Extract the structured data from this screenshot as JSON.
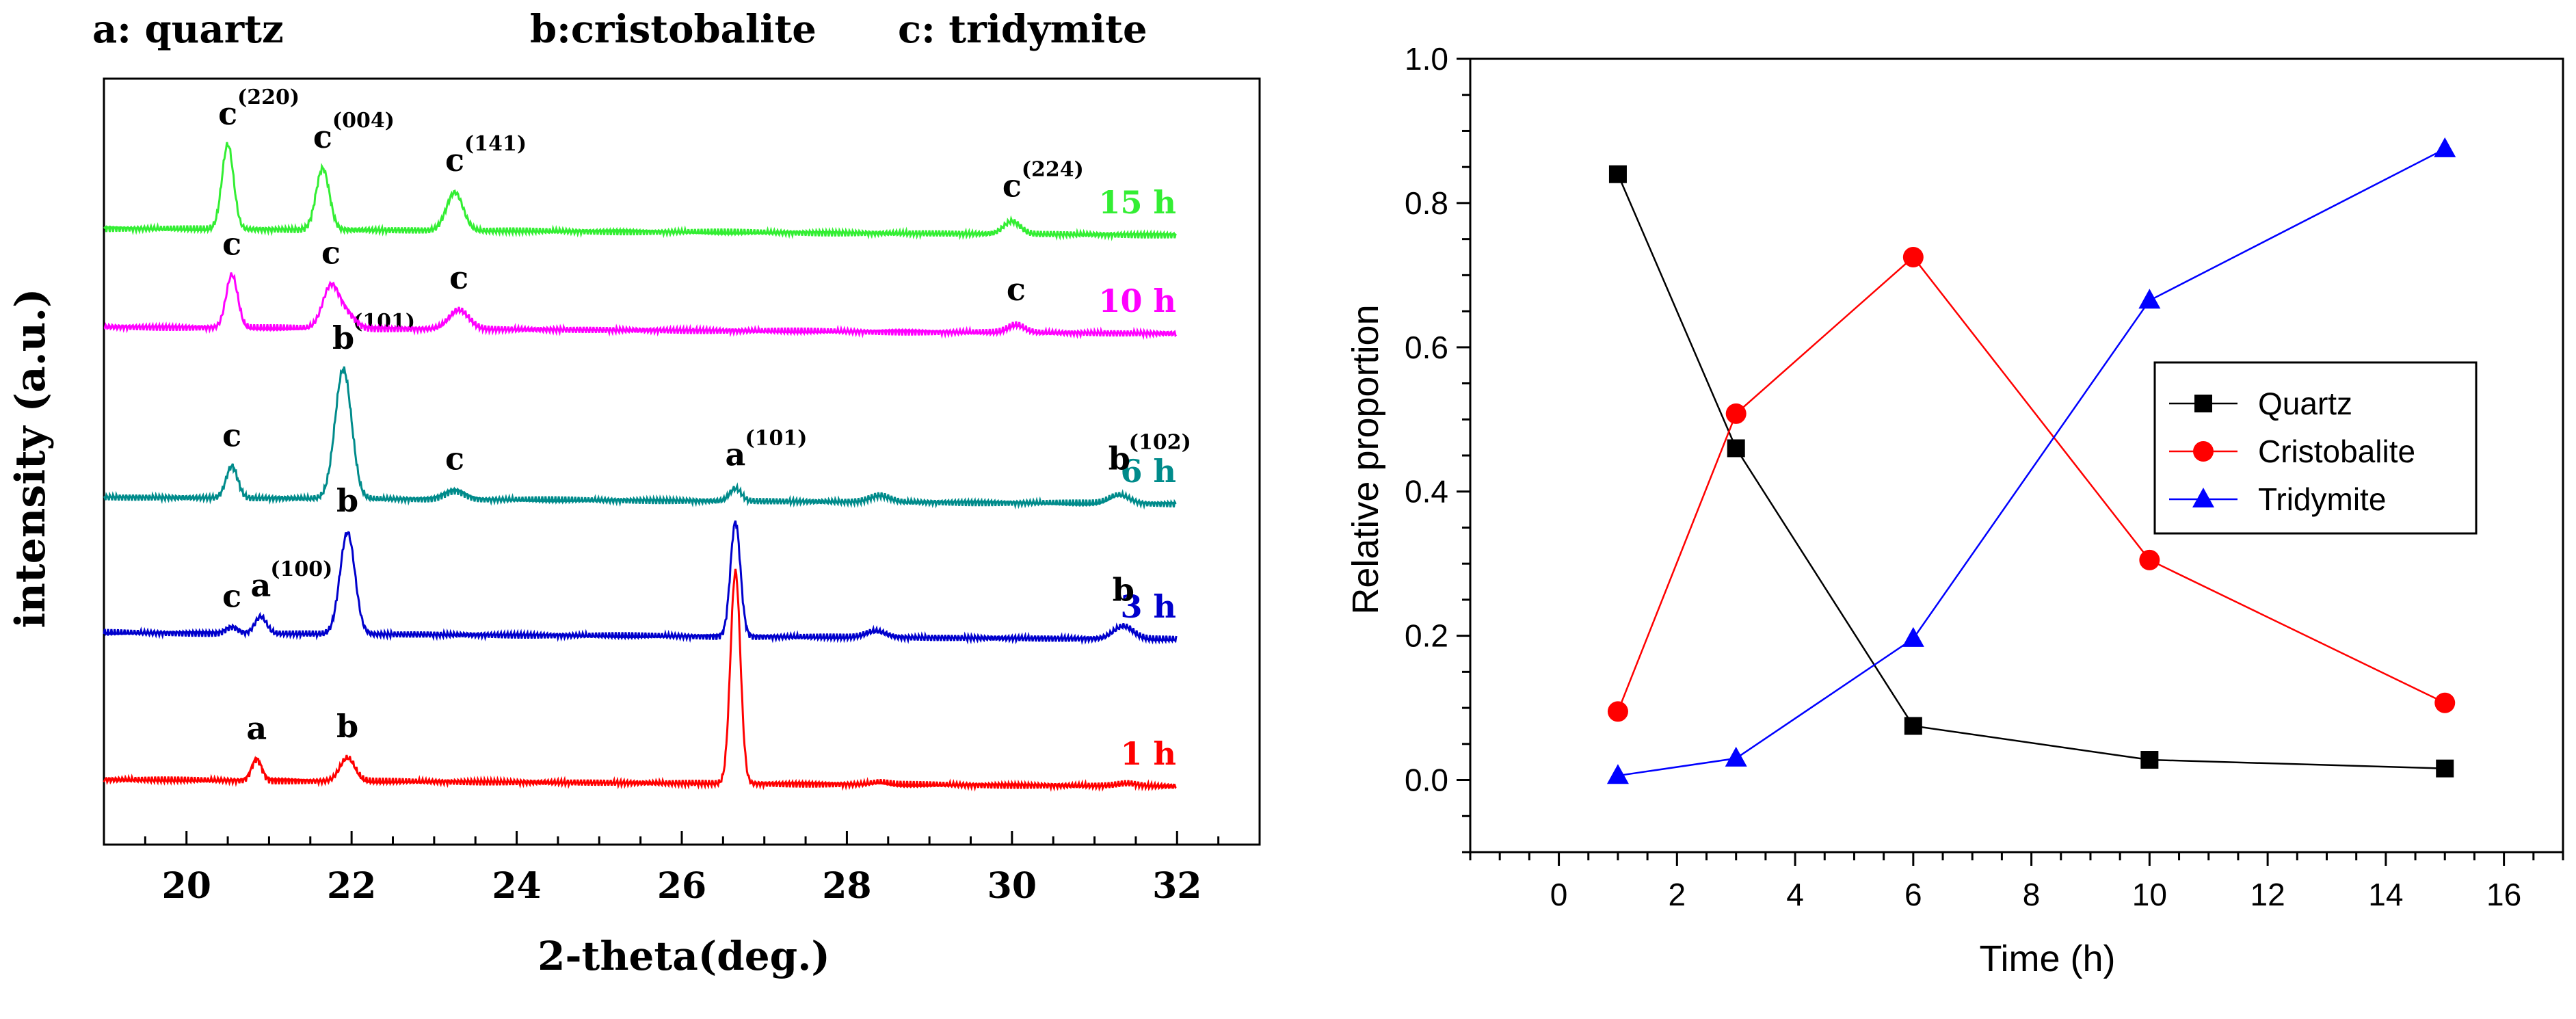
{
  "xrd_panel": {
    "phase_legend": [
      "a: quartz",
      "b:cristobalite",
      "c: tridymite"
    ],
    "xlabel": "2-theta(deg.)",
    "ylabel": "intensity (a.u.)",
    "xlim": [
      19,
      33
    ],
    "x_ticks": [
      20,
      22,
      24,
      26,
      28,
      30,
      32
    ],
    "x_tick_labels": [
      "20",
      "22",
      "24",
      "26",
      "28",
      "30",
      "32"
    ],
    "series": [
      {
        "name": "1 h",
        "label": "1 h",
        "color": "#ff0000",
        "peaks": [
          {
            "position": 20.85,
            "height": 0.5,
            "width": 0.06
          },
          {
            "position": 21.95,
            "height": 0.55,
            "width": 0.09
          },
          {
            "position": 26.65,
            "height": 5.0,
            "width": 0.06
          },
          {
            "position": 28.4,
            "height": 0.05,
            "width": 0.1
          },
          {
            "position": 31.4,
            "height": 0.06,
            "width": 0.12
          }
        ],
        "annotations": [
          {
            "letter": "a",
            "index": "",
            "position": 20.85
          },
          {
            "letter": "b",
            "index": "",
            "position": 21.95
          }
        ]
      },
      {
        "name": "3 h",
        "label": "3 h",
        "color": "#0000cc",
        "peaks": [
          {
            "position": 20.55,
            "height": 0.15,
            "width": 0.07
          },
          {
            "position": 20.9,
            "height": 0.4,
            "width": 0.07
          },
          {
            "position": 21.95,
            "height": 2.4,
            "width": 0.09
          },
          {
            "position": 26.65,
            "height": 2.7,
            "width": 0.06
          },
          {
            "position": 28.35,
            "height": 0.15,
            "width": 0.12
          },
          {
            "position": 31.35,
            "height": 0.3,
            "width": 0.12
          }
        ],
        "annotations": [
          {
            "letter": "c",
            "index": "",
            "position": 20.55
          },
          {
            "letter": "a",
            "index": "(100)",
            "position": 20.9
          },
          {
            "letter": "b",
            "index": "",
            "position": 21.95
          },
          {
            "letter": "b",
            "index": "",
            "position": 31.35
          }
        ]
      },
      {
        "name": "6 h",
        "label": "6 h",
        "color": "#008b8b",
        "peaks": [
          {
            "position": 20.55,
            "height": 0.75,
            "width": 0.07
          },
          {
            "position": 21.9,
            "height": 3.05,
            "width": 0.1
          },
          {
            "position": 23.25,
            "height": 0.2,
            "width": 0.12
          },
          {
            "position": 26.65,
            "height": 0.3,
            "width": 0.07
          },
          {
            "position": 28.4,
            "height": 0.15,
            "width": 0.12
          },
          {
            "position": 31.3,
            "height": 0.2,
            "width": 0.12
          }
        ],
        "annotations": [
          {
            "letter": "c",
            "index": "",
            "position": 20.55
          },
          {
            "letter": "b",
            "index": "(101)",
            "position": 21.9
          },
          {
            "letter": "c",
            "index": "",
            "position": 23.25
          },
          {
            "letter": "a",
            "index": "(101)",
            "position": 26.65
          },
          {
            "letter": "b",
            "index": "(102)",
            "position": 31.3
          }
        ]
      },
      {
        "name": "10 h",
        "label": "10 h",
        "color": "#ff00ff",
        "peaks": [
          {
            "position": 20.55,
            "height": 1.25,
            "width": 0.07
          },
          {
            "position": 21.75,
            "height": 1.0,
            "width": 0.1
          },
          {
            "position": 21.95,
            "height": 0.3,
            "width": 0.1
          },
          {
            "position": 23.3,
            "height": 0.45,
            "width": 0.12
          },
          {
            "position": 30.05,
            "height": 0.18,
            "width": 0.1
          }
        ],
        "annotations": [
          {
            "letter": "c",
            "index": "",
            "position": 20.55
          },
          {
            "letter": "c",
            "index": "",
            "position": 21.75
          },
          {
            "letter": "c",
            "index": "",
            "position": 23.3
          },
          {
            "letter": "c",
            "index": "",
            "position": 30.05
          }
        ]
      },
      {
        "name": "15 h",
        "label": "15 h",
        "color": "#33ee33",
        "peaks": [
          {
            "position": 20.5,
            "height": 2.0,
            "width": 0.07
          },
          {
            "position": 21.65,
            "height": 1.45,
            "width": 0.08
          },
          {
            "position": 23.25,
            "height": 0.9,
            "width": 0.1
          },
          {
            "position": 30.0,
            "height": 0.3,
            "width": 0.1
          }
        ],
        "annotations": [
          {
            "letter": "c",
            "index": "(220)",
            "position": 20.5
          },
          {
            "letter": "c",
            "index": "(004)",
            "position": 21.65
          },
          {
            "letter": "c",
            "index": "(141)",
            "position": 23.25
          },
          {
            "letter": "c",
            "index": "(224)",
            "position": 30.0
          }
        ]
      }
    ]
  },
  "chart_data": {
    "type": "line",
    "xlabel": "Time (h)",
    "ylabel": "Relative proportion",
    "xlim": [
      -1.5,
      17
    ],
    "ylim": [
      -0.1,
      1.0
    ],
    "x_ticks": [
      0,
      2,
      4,
      6,
      8,
      10,
      12,
      14,
      16
    ],
    "x_tick_labels": [
      "0",
      "2",
      "4",
      "6",
      "8",
      "10",
      "12",
      "14",
      "16"
    ],
    "y_ticks": [
      0.0,
      0.2,
      0.4,
      0.6,
      0.8,
      1.0
    ],
    "y_tick_labels": [
      "0.0",
      "0.2",
      "0.4",
      "0.6",
      "0.8",
      "1.0"
    ],
    "legend_position": "center-right",
    "x": [
      1,
      3,
      6,
      10,
      15
    ],
    "series": [
      {
        "name": "Quartz",
        "color": "#000000",
        "marker": "square",
        "values": [
          0.84,
          0.46,
          0.075,
          0.028,
          0.016
        ]
      },
      {
        "name": "Cristobalite",
        "color": "#ff0000",
        "marker": "circle",
        "values": [
          0.095,
          0.508,
          0.725,
          0.305,
          0.107
        ]
      },
      {
        "name": "Tridymite",
        "color": "#0000ff",
        "marker": "triangle",
        "values": [
          0.006,
          0.03,
          0.196,
          0.665,
          0.875
        ]
      }
    ]
  }
}
